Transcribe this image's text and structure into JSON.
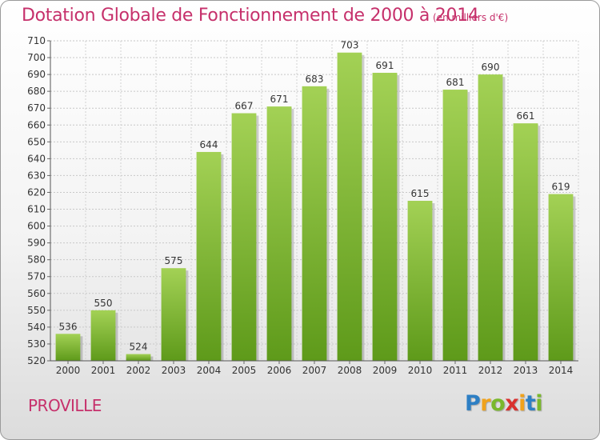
{
  "header": {
    "title": "Dotation Globale de Fonctionnement de 2000 à 2014",
    "subtitle": "(en milliers d'€)"
  },
  "footer": {
    "commune": "PROVILLE",
    "logo": {
      "letters": [
        "P",
        "r",
        "o",
        "x",
        "i",
        "t",
        "i"
      ],
      "colors": [
        "#2d7fc4",
        "#f0a21b",
        "#7ab82c",
        "#d9322f",
        "#f0a21b",
        "#2d7fc4",
        "#7ab82c"
      ]
    }
  },
  "chart_data": {
    "type": "bar",
    "title": "Dotation Globale de Fonctionnement de 2000 à 2014",
    "subtitle": "(en milliers d'€)",
    "categories": [
      "2000",
      "2001",
      "2002",
      "2003",
      "2004",
      "2005",
      "2006",
      "2007",
      "2008",
      "2009",
      "2010",
      "2011",
      "2012",
      "2013",
      "2014"
    ],
    "values": [
      536,
      550,
      524,
      575,
      644,
      667,
      671,
      683,
      703,
      691,
      615,
      681,
      690,
      661,
      619
    ],
    "ylim": [
      520,
      710
    ],
    "yticks": [
      520,
      530,
      540,
      550,
      560,
      570,
      580,
      590,
      600,
      610,
      620,
      630,
      640,
      650,
      660,
      670,
      680,
      690,
      700,
      710
    ],
    "grid": true,
    "bar_color_top": "#a3d155",
    "bar_color_bottom": "#5e9a1a"
  }
}
